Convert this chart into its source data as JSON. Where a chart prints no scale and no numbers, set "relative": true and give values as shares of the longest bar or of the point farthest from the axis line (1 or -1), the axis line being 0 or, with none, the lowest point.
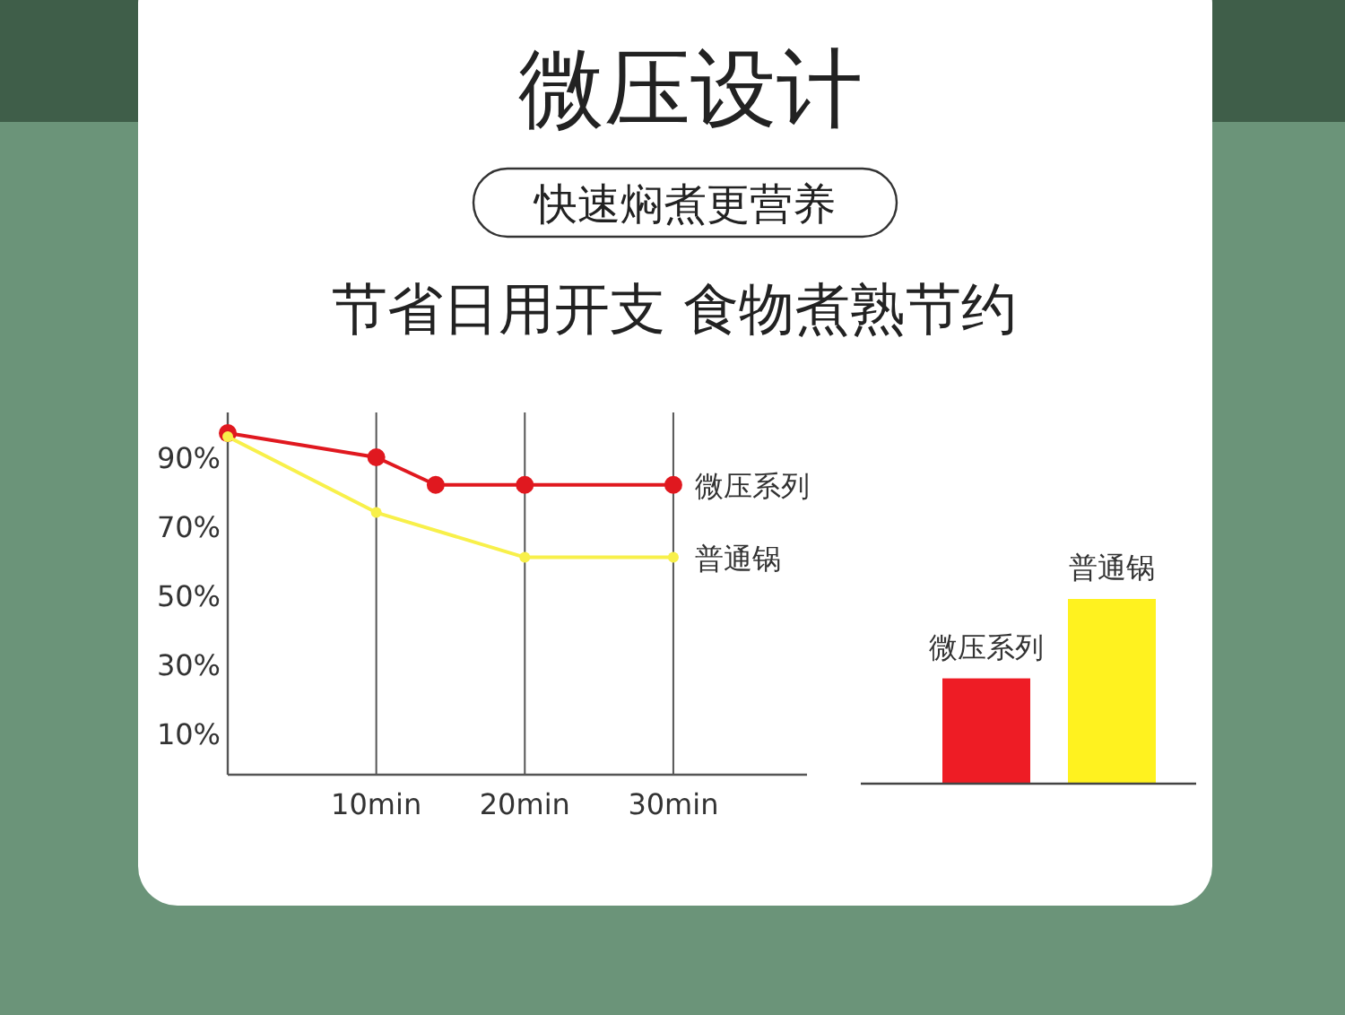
{
  "chart_data": [
    {
      "type": "line",
      "title": "微压设计",
      "subtitle": "快速焖煮更营养",
      "annotations": [
        "节省日用开支  食物煮熟节约"
      ],
      "xlim": [
        0,
        39
      ],
      "ylim": [
        -2,
        103
      ],
      "xticks": [
        {
          "value": 10,
          "label": "10min"
        },
        {
          "value": 20,
          "label": "20min"
        },
        {
          "value": 30,
          "label": "30min"
        }
      ],
      "yticks": [
        {
          "value": 10,
          "label": "10%"
        },
        {
          "value": 30,
          "label": "30%"
        },
        {
          "value": 50,
          "label": "50%"
        },
        {
          "value": 70,
          "label": "70%"
        },
        {
          "value": 90,
          "label": "90%"
        }
      ],
      "grid": "x",
      "marker": "circle",
      "series": [
        {
          "name": "微压系列",
          "color": "#e0181f",
          "x": [
            0,
            10,
            14,
            20,
            30
          ],
          "values": [
            97,
            90,
            82,
            82,
            82
          ]
        },
        {
          "name": "普通锅",
          "color": "#f8f04a",
          "x": [
            0,
            10,
            20,
            30
          ],
          "values": [
            96,
            74,
            61,
            61
          ]
        }
      ]
    },
    {
      "type": "bar",
      "relative": true,
      "categories": [
        "微压系列",
        "普通锅"
      ],
      "values": [
        0.57,
        1
      ],
      "colors": [
        "#ee1c25",
        "#fff21f"
      ]
    }
  ]
}
